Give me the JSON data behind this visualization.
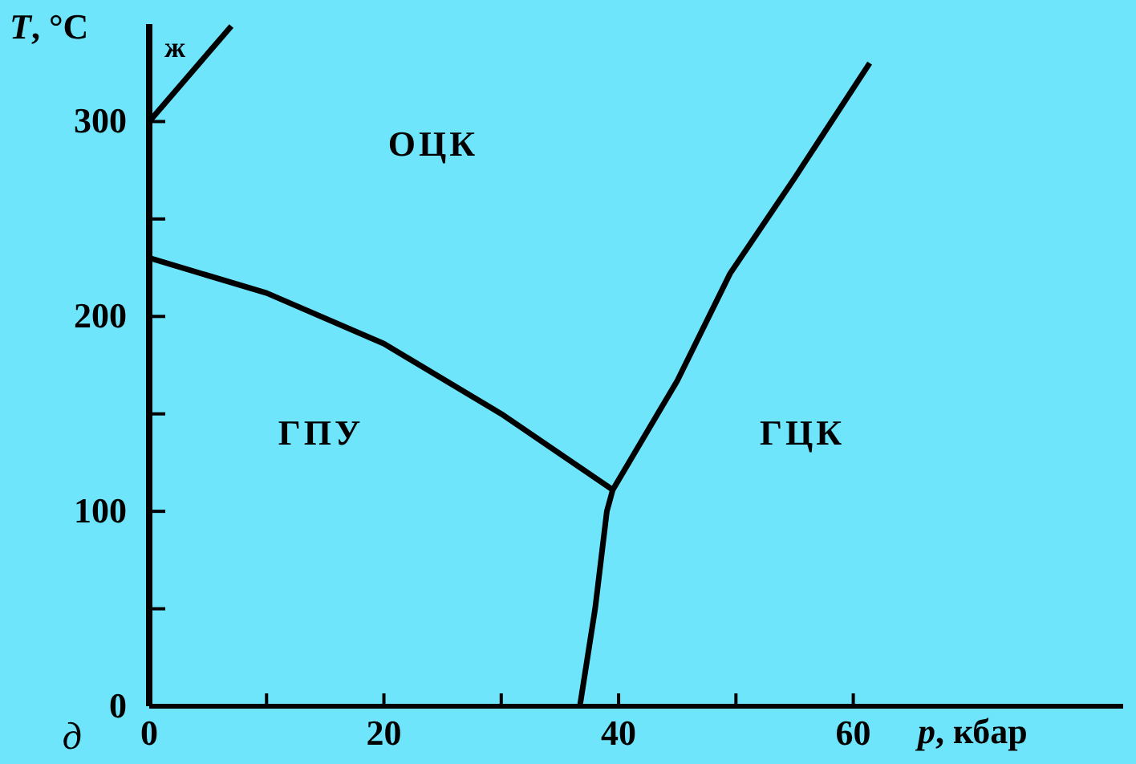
{
  "chart_data": {
    "type": "line",
    "xlabel": "p, кбар",
    "ylabel": "T, °C",
    "xlim": [
      0,
      83
    ],
    "ylim": [
      0,
      350
    ],
    "xticks": [
      0,
      {
        "value": 10,
        "label": null
      },
      20,
      {
        "value": 30,
        "label": null
      },
      40,
      {
        "value": 50,
        "label": null
      },
      60
    ],
    "yticks": [
      0,
      {
        "value": 50,
        "label": null
      },
      100,
      {
        "value": 150,
        "label": null
      },
      200,
      {
        "value": 250,
        "label": null
      },
      300
    ],
    "grid": false,
    "legend": false,
    "marker": "none",
    "line_style": "solid",
    "series": [
      {
        "color": "#000000",
        "x": [
          0,
          7
        ],
        "values": [
          300,
          349
        ]
      },
      {
        "color": "#000000",
        "x": [
          0,
          10,
          20,
          30,
          39.5
        ],
        "values": [
          230,
          212,
          186,
          150,
          111
        ]
      },
      {
        "color": "#000000",
        "x": [
          36.7,
          38,
          39,
          39.5,
          45,
          49.5,
          55,
          61.4
        ],
        "values": [
          0,
          50,
          100,
          111,
          167,
          222,
          271,
          330
        ]
      }
    ],
    "annotations": [
      "ж",
      "ОЦК",
      "ГПУ",
      "ГЦК",
      "д"
    ]
  }
}
